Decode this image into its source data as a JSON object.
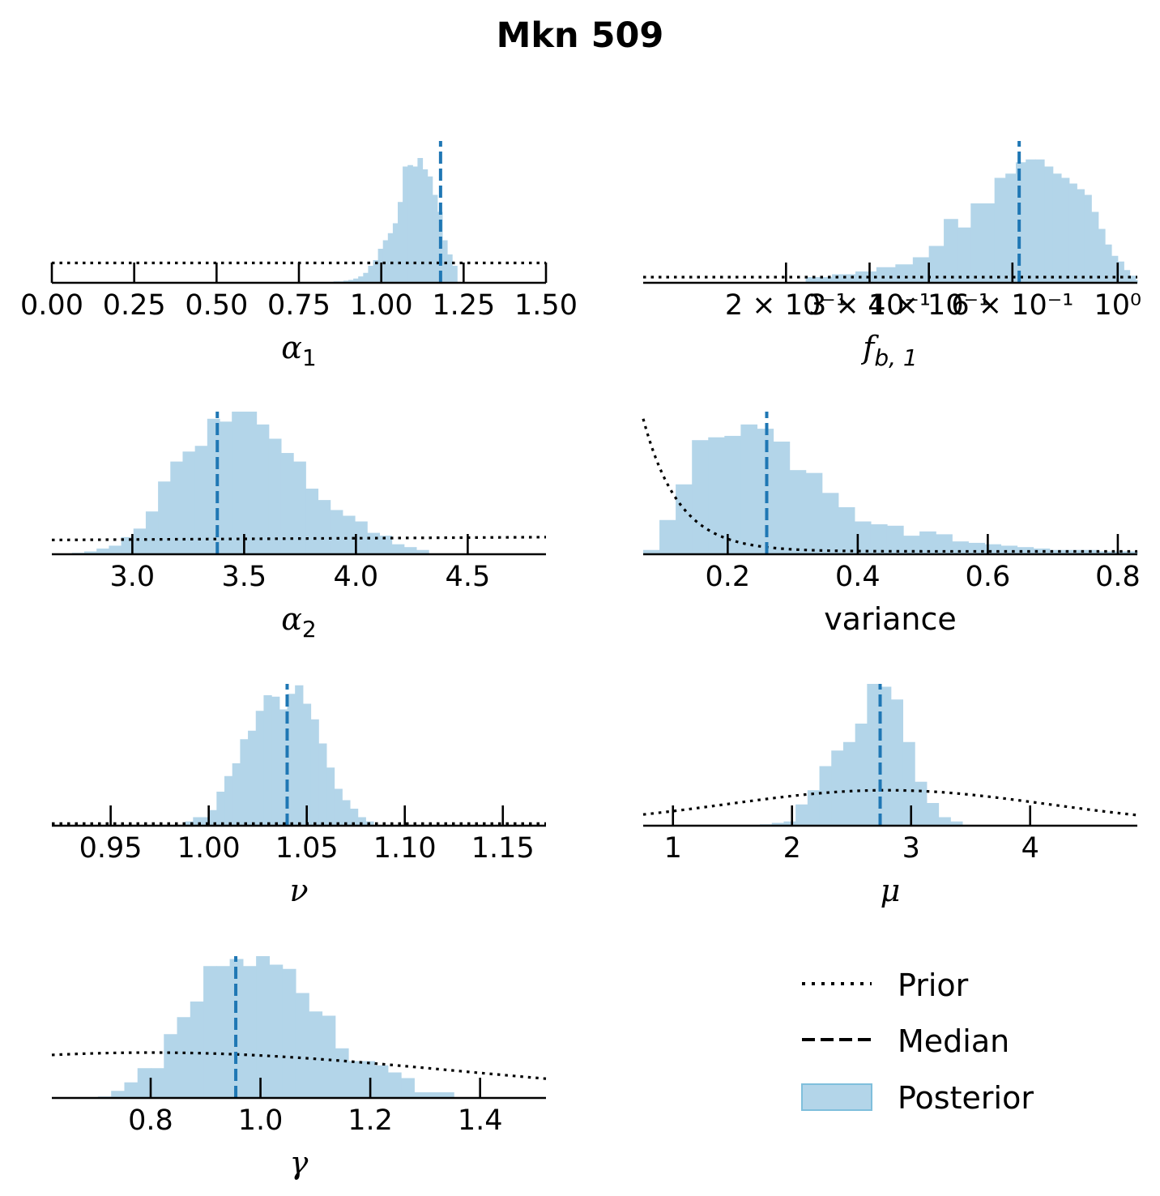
{
  "title": "Mkn 509",
  "colors": {
    "posterior": "#b3d5e9",
    "posterior_edge": "#7fbfdc",
    "median": "#1f77b4",
    "prior": "#000000",
    "axis": "#000000"
  },
  "legend": {
    "prior": "Prior",
    "median": "Median",
    "posterior": "Posterior"
  },
  "chart_data": [
    {
      "id": "alpha1",
      "type": "histogram",
      "xlabel_sym": "α",
      "xlabel_sub": "1",
      "scale": "linear",
      "xlim": [
        0.0,
        1.5
      ],
      "ticks": [
        0.0,
        0.25,
        0.5,
        0.75,
        1.0,
        1.25,
        1.5
      ],
      "tick_labels": [
        "0.00",
        "0.25",
        "0.50",
        "0.75",
        "1.00",
        "1.25",
        "1.50"
      ],
      "bins": {
        "start": 0.84,
        "width": 0.015,
        "counts": [
          0.005,
          0.01,
          0.01,
          0.015,
          0.02,
          0.03,
          0.045,
          0.07,
          0.12,
          0.16,
          0.24,
          0.3,
          0.35,
          0.42,
          0.57,
          0.82,
          0.83,
          0.82,
          0.88,
          0.8,
          0.75,
          0.62,
          0.5,
          0.3,
          0.2,
          0.12
        ]
      },
      "median": 1.18,
      "prior": {
        "kind": "uniform",
        "level": 0.14
      }
    },
    {
      "id": "fb1",
      "type": "histogram",
      "xlabel_sym": "f",
      "xlabel_sub": "b, 1",
      "scale": "log",
      "xlim": [
        0.1,
        1.1
      ],
      "ticks": [
        0.2,
        0.3,
        0.4,
        0.6,
        1.0
      ],
      "tick_labels": [
        "2 × 10⁻¹",
        "3 × 10⁻¹",
        "4 × 10⁻¹",
        "6 × 10⁻¹",
        "10⁰"
      ],
      "bins": {
        "start": 0.1,
        "width": 0.03,
        "counts": [
          0.0,
          0.0,
          0.0,
          0.0,
          0.04,
          0.06,
          0.08,
          0.11,
          0.13,
          0.18,
          0.26,
          0.45,
          0.39,
          0.56,
          0.56,
          0.74,
          0.77,
          0.85,
          0.87,
          0.87,
          0.82,
          0.77,
          0.74,
          0.7,
          0.66,
          0.62,
          0.5,
          0.38,
          0.27,
          0.19,
          0.15,
          0.09,
          0.05,
          0.02
        ]
      },
      "median": 0.62,
      "prior": {
        "kind": "uniform",
        "level": 0.04
      }
    },
    {
      "id": "alpha2",
      "type": "histogram",
      "xlabel_sym": "α",
      "xlabel_sub": "2",
      "scale": "linear",
      "xlim": [
        2.64,
        4.85
      ],
      "ticks": [
        3.0,
        3.5,
        4.0,
        4.5
      ],
      "tick_labels": [
        "3.0",
        "3.5",
        "4.0",
        "4.5"
      ],
      "bins": {
        "start": 2.73,
        "width": 0.055,
        "counts": [
          0.01,
          0.02,
          0.04,
          0.06,
          0.12,
          0.18,
          0.3,
          0.51,
          0.65,
          0.72,
          0.76,
          0.95,
          0.93,
          1.0,
          1.0,
          0.91,
          0.81,
          0.71,
          0.65,
          0.46,
          0.38,
          0.31,
          0.27,
          0.23,
          0.15,
          0.13,
          0.07,
          0.05,
          0.03
        ]
      },
      "median": 3.38,
      "prior": {
        "kind": "uniform_tilted",
        "left": 0.1,
        "right": 0.12
      }
    },
    {
      "id": "variance",
      "type": "histogram",
      "xlabel": "variance",
      "scale": "linear",
      "xlim": [
        0.07,
        0.83
      ],
      "ticks": [
        0.2,
        0.4,
        0.6,
        0.8
      ],
      "tick_labels": [
        "0.2",
        "0.4",
        "0.6",
        "0.8"
      ],
      "bins": {
        "start": 0.07,
        "width": 0.025,
        "counts": [
          0.03,
          0.24,
          0.49,
          0.8,
          0.82,
          0.83,
          0.91,
          0.88,
          0.79,
          0.59,
          0.57,
          0.43,
          0.33,
          0.23,
          0.21,
          0.2,
          0.13,
          0.16,
          0.14,
          0.09,
          0.08,
          0.07,
          0.06,
          0.05,
          0.04,
          0.03,
          0.03,
          0.03,
          0.02,
          0.02,
          0.02
        ]
      },
      "median": 0.26,
      "prior": {
        "kind": "decay",
        "anchor": 0.07,
        "peak": 0.95,
        "tail": 0.02,
        "rate": 0.055
      }
    },
    {
      "id": "nu",
      "type": "histogram",
      "xlabel_sym": "ν",
      "scale": "linear",
      "xlim": [
        0.92,
        1.172
      ],
      "ticks": [
        0.95,
        1.0,
        1.05,
        1.1,
        1.15
      ],
      "tick_labels": [
        "0.95",
        "1.00",
        "1.05",
        "1.10",
        "1.15"
      ],
      "bins": {
        "start": 0.988,
        "width": 0.004,
        "counts": [
          0.03,
          0.06,
          0.06,
          0.11,
          0.24,
          0.35,
          0.44,
          0.61,
          0.67,
          0.81,
          0.92,
          0.91,
          0.82,
          0.93,
          0.99,
          0.86,
          0.75,
          0.58,
          0.41,
          0.26,
          0.18,
          0.12,
          0.06,
          0.03
        ]
      },
      "median": 1.04,
      "prior": {
        "kind": "uniform",
        "level": 0.015
      }
    },
    {
      "id": "mu",
      "type": "histogram",
      "xlabel_sym": "μ",
      "scale": "linear",
      "xlim": [
        0.75,
        4.9
      ],
      "ticks": [
        1,
        2,
        3,
        4
      ],
      "tick_labels": [
        "1",
        "2",
        "3",
        "4"
      ],
      "bins": {
        "start": 1.63,
        "width": 0.1,
        "counts": [
          0.0,
          0.01,
          0.02,
          0.03,
          0.15,
          0.25,
          0.42,
          0.53,
          0.59,
          0.72,
          1.0,
          0.98,
          0.89,
          0.59,
          0.31,
          0.16,
          0.06,
          0.03
        ]
      },
      "median": 2.74,
      "prior": {
        "kind": "gaussian",
        "center": 2.8,
        "sigma": 1.35,
        "height": 0.25,
        "floor": 0.0
      }
    },
    {
      "id": "gamma",
      "type": "histogram",
      "xlabel_sym": "γ",
      "scale": "linear",
      "xlim": [
        0.62,
        1.52
      ],
      "ticks": [
        0.8,
        1.0,
        1.2,
        1.4
      ],
      "tick_labels": [
        "0.8",
        "1.0",
        "1.2",
        "1.4"
      ],
      "bins": {
        "start": 0.68,
        "width": 0.024,
        "counts": [
          0.0,
          0.01,
          0.05,
          0.11,
          0.21,
          0.21,
          0.45,
          0.57,
          0.68,
          0.93,
          0.93,
          0.98,
          0.93,
          1.0,
          0.94,
          0.91,
          0.74,
          0.61,
          0.58,
          0.35,
          0.26,
          0.26,
          0.23,
          0.18,
          0.14,
          0.04,
          0.04,
          0.04
        ]
      },
      "median": 0.955,
      "prior": {
        "kind": "gaussian",
        "center": 0.8,
        "sigma": 0.55,
        "height": 0.32,
        "floor": 0.0
      }
    }
  ]
}
